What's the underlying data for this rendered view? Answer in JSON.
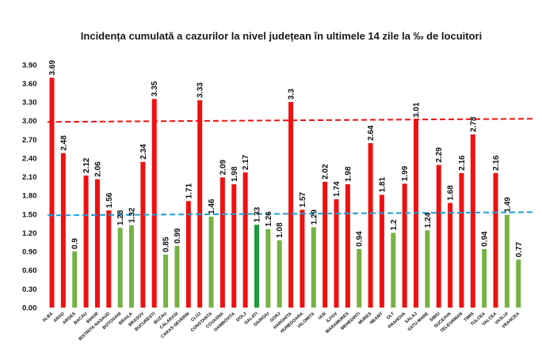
{
  "chart_data": {
    "type": "bar",
    "title": "Incidența cumulată a cazurilor la nivel județean în ultimele 14 zile la ‰ de locuitori",
    "xlabel": "",
    "ylabel": "",
    "ylim": [
      0,
      4.05
    ],
    "yticks": [
      "0.00",
      "0.30",
      "0.60",
      "0.90",
      "1.20",
      "1.50",
      "1.80",
      "2.10",
      "2.40",
      "2.70",
      "3.00",
      "3.30",
      "3.60",
      "3.90"
    ],
    "grid": false,
    "legend": "none",
    "categories": [
      "ALBA",
      "ARAD",
      "ARGES",
      "BACAU",
      "BIHOR",
      "BISTRITA NASAUD",
      "BOTOSANI",
      "BRAILA",
      "BRASOV",
      "BUCURESTI",
      "BUZAU",
      "CALARASI",
      "CARAS-SEVERIN",
      "CLUJ",
      "CONSTANTA",
      "COVASNA",
      "DAMBOVITA",
      "DOLJ",
      "GALATI",
      "GIURGIU",
      "GORJ",
      "HARGHITA",
      "HUNEDOARA",
      "IALOMITA",
      "IASI",
      "ILFOV",
      "MARAMURES",
      "MEHEDINTI",
      "MURES",
      "NEAMT",
      "OLT",
      "PRAHOVA",
      "SALAJ",
      "SATU MARE",
      "SIBIU",
      "SUCEAVA",
      "TELEORMAN",
      "TIMIS",
      "TULCEA",
      "VALCEA",
      "VASLUI",
      "VRANCEA"
    ],
    "values": [
      3.69,
      2.48,
      0.9,
      2.12,
      2.06,
      1.56,
      1.28,
      1.32,
      2.34,
      3.35,
      0.85,
      0.99,
      1.71,
      3.33,
      1.46,
      2.09,
      1.98,
      2.17,
      1.33,
      1.26,
      1.08,
      3.3,
      1.57,
      1.29,
      2.02,
      1.74,
      1.98,
      0.94,
      2.64,
      1.81,
      1.2,
      1.99,
      3.01,
      1.24,
      2.29,
      1.68,
      2.16,
      2.78,
      0.94,
      2.16,
      1.49,
      0.77
    ],
    "value_labels": [
      "3.69",
      "2.48",
      "0.9",
      "2.12",
      "2.06",
      "1.56",
      "1.28",
      "1.32",
      "2.34",
      "3.35",
      "0.85",
      "0.99",
      "1.71",
      "3.33",
      "1.46",
      "2.09",
      "1.98",
      "2.17",
      "1.33",
      "1.26",
      "1.08",
      "3.3",
      "1.57",
      "1.29",
      "2.02",
      "1.74",
      "1.98",
      "0.94",
      "2.64",
      "1.81",
      "1.2",
      "1.99",
      "3.01",
      "1.24",
      "2.29",
      "1.68",
      "2.16",
      "2.78",
      "0.94",
      "2.16",
      "1.49",
      "0.77"
    ],
    "bar_colors": {
      "above_1_5": "#ee1111",
      "below_1_5": "#77b244",
      "highlight": "#1f9b3c"
    },
    "highlight_category": "GALATI",
    "thresholds": [
      {
        "value": 3.0,
        "color": "#ee1111",
        "style": "dashed"
      },
      {
        "value": 1.5,
        "color": "#1aa0d8",
        "style": "dashed"
      }
    ]
  }
}
